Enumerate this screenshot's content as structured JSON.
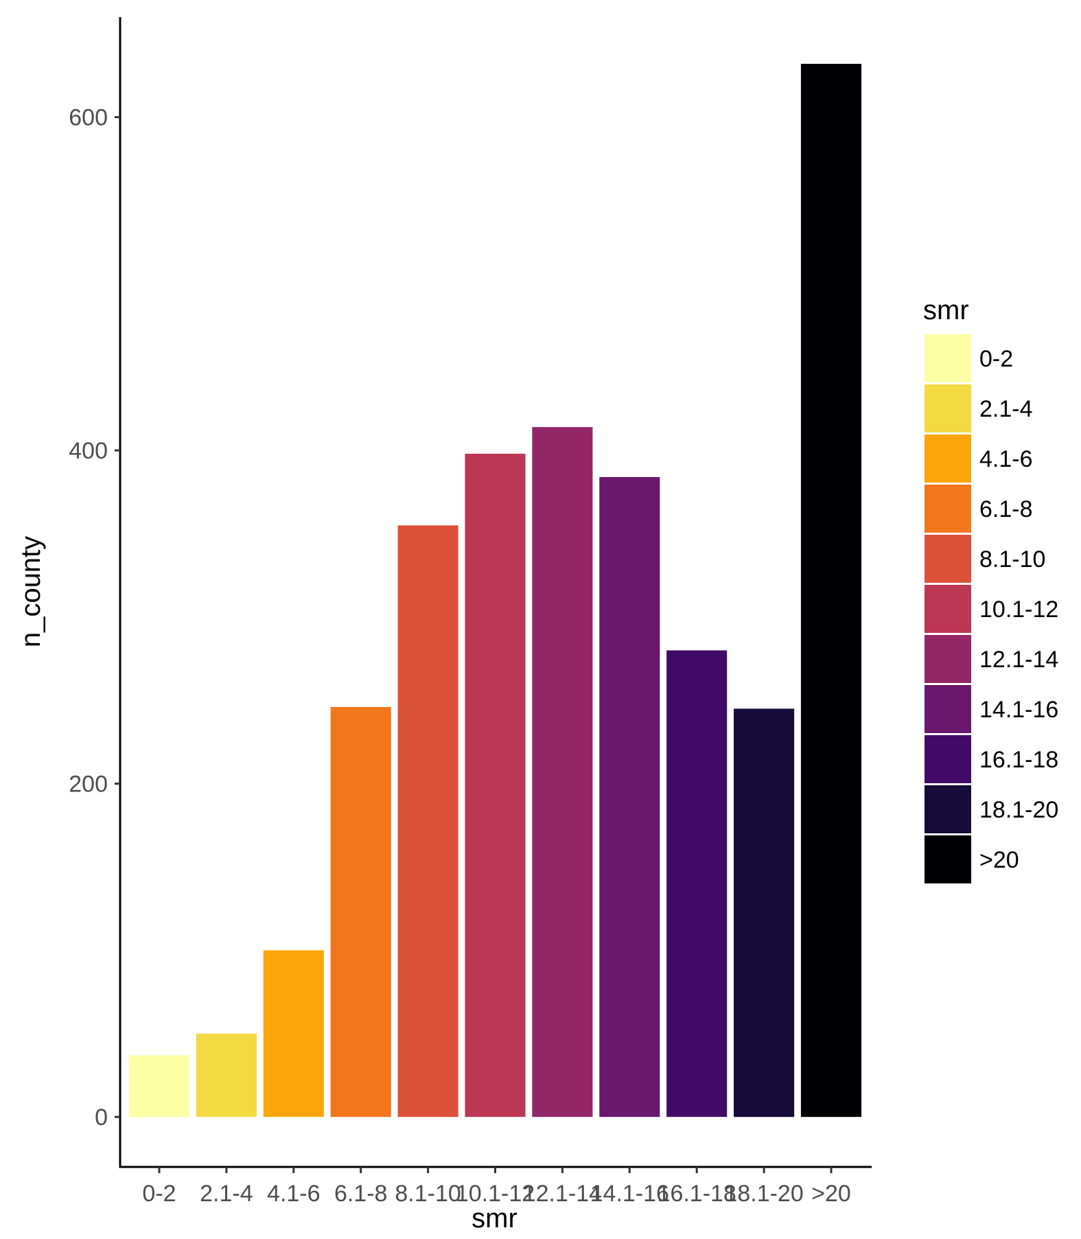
{
  "chart_data": {
    "type": "bar",
    "categories": [
      "0-2",
      "2.1-4",
      "4.1-6",
      "6.1-8",
      "8.1-10",
      "10.1-12",
      "12.1-14",
      "14.1-16",
      "16.1-18",
      "18.1-20",
      ">20"
    ],
    "values": [
      37,
      50,
      100,
      246,
      355,
      398,
      414,
      384,
      280,
      245,
      632
    ],
    "colors": [
      "#FCFFA4",
      "#F3D942",
      "#FCA50A",
      "#F2761C",
      "#DD513A",
      "#BB3754",
      "#932667",
      "#6A176E",
      "#420A68",
      "#160B39",
      "#000004"
    ],
    "xlabel": "smr",
    "ylabel": "n_county",
    "ylim": [
      -30,
      660
    ],
    "yticks": [
      0,
      200,
      400,
      600
    ],
    "grid": false,
    "legend": {
      "title": "smr",
      "placement": "right",
      "entries": [
        "0-2",
        "2.1-4",
        "4.1-6",
        "6.1-8",
        "8.1-10",
        "10.1-12",
        "12.1-14",
        "14.1-16",
        "16.1-18",
        "18.1-20",
        ">20"
      ]
    }
  }
}
